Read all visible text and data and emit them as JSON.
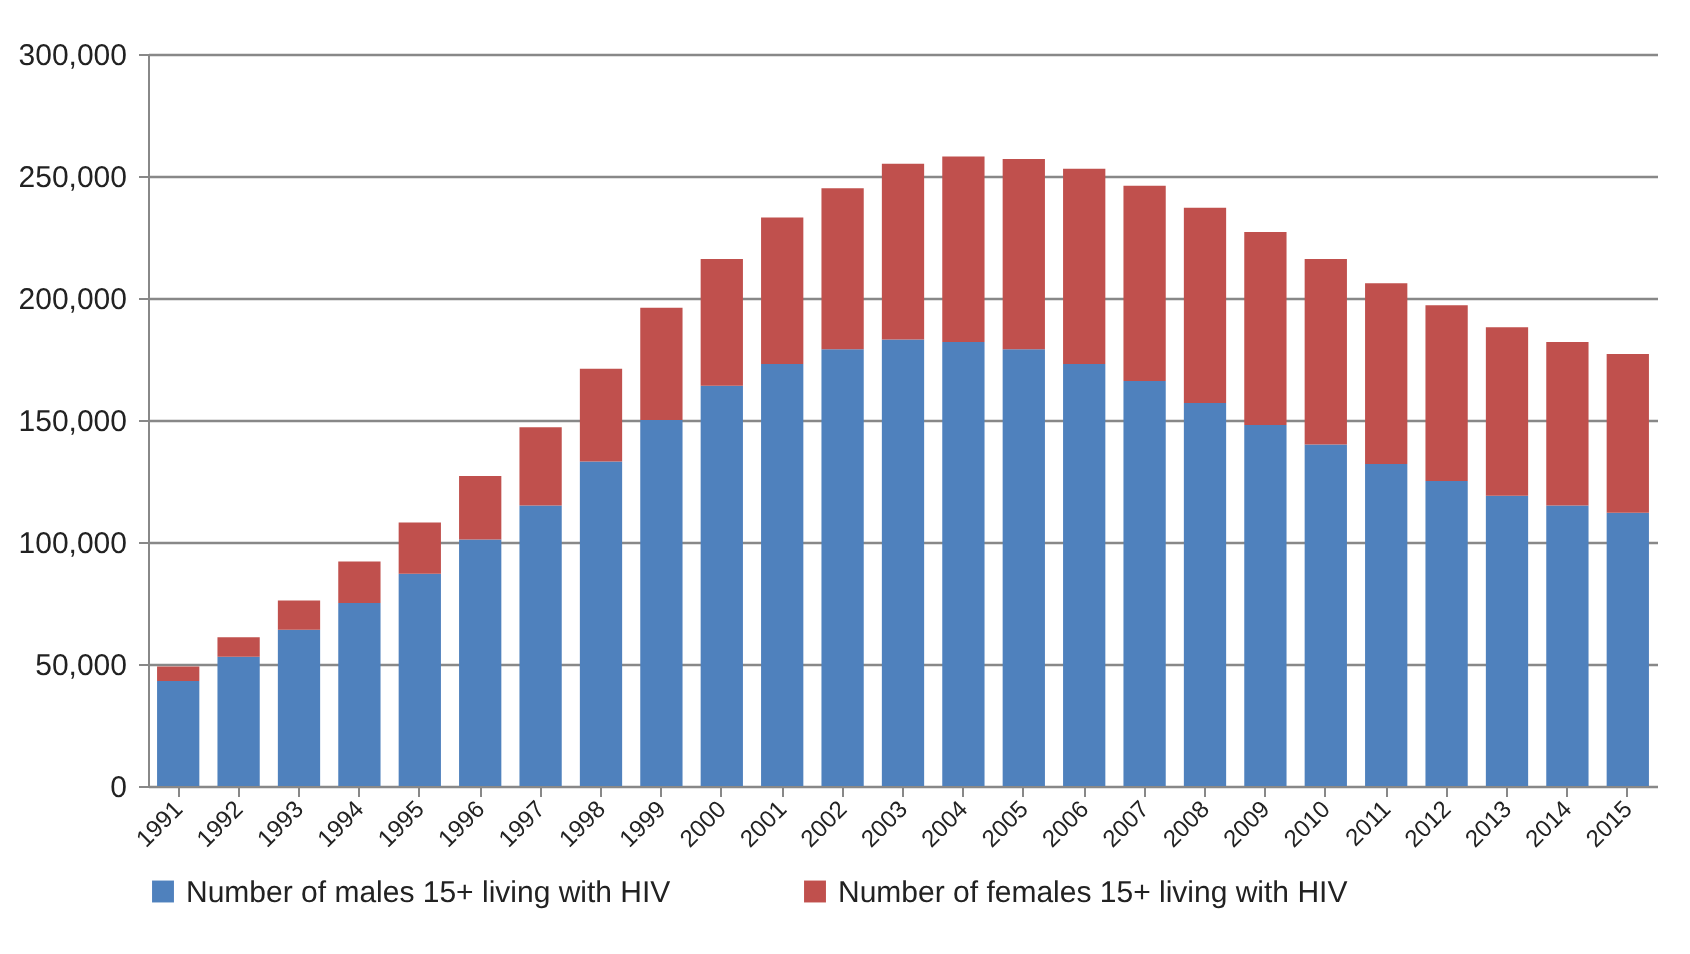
{
  "chart_data": {
    "type": "bar",
    "stacked": true,
    "categories": [
      "1991",
      "1992",
      "1993",
      "1994",
      "1995",
      "1996",
      "1997",
      "1998",
      "1999",
      "2000",
      "2001",
      "2002",
      "2003",
      "2004",
      "2005",
      "2006",
      "2007",
      "2008",
      "2009",
      "2010",
      "2011",
      "2012",
      "2013",
      "2014",
      "2015"
    ],
    "series": [
      {
        "name": "Number of males 15+ living  with HIV",
        "color": "#4f81bd",
        "values": [
          43000,
          53000,
          64000,
          75000,
          87000,
          101000,
          115000,
          133000,
          150000,
          164000,
          173000,
          179000,
          183000,
          182000,
          179000,
          173000,
          166000,
          157000,
          148000,
          140000,
          132000,
          125000,
          119000,
          115000,
          112000
        ]
      },
      {
        "name": "Number of females 15+ living  with HIV",
        "color": "#c0504d",
        "values": [
          6000,
          8000,
          12000,
          17000,
          21000,
          26000,
          32000,
          38000,
          46000,
          52000,
          60000,
          66000,
          72000,
          76000,
          78000,
          80000,
          80000,
          80000,
          79000,
          76000,
          74000,
          72000,
          69000,
          67000,
          65000
        ]
      }
    ],
    "ylim": [
      0,
      300000
    ],
    "yticks": [
      0,
      {
        "value": 50000,
        "label": "50,000"
      },
      {
        "value": 100000,
        "label": "100,000"
      },
      {
        "value": 150000,
        "label": "150,000"
      },
      {
        "value": 200000,
        "label": "200,000"
      },
      {
        "value": 250000,
        "label": "250,000"
      },
      {
        "value": 300000,
        "label": "300,000"
      }
    ],
    "grid": "y",
    "legend": "bottom"
  }
}
